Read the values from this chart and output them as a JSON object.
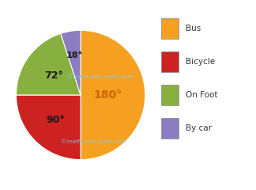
{
  "labels": [
    "Bus",
    "Bicycle",
    "On Foot",
    "By car"
  ],
  "angles": [
    180,
    90,
    72,
    18
  ],
  "colors": [
    "#F5A020",
    "#CC2222",
    "#88B040",
    "#8B7DC0"
  ],
  "angle_labels": [
    "180°",
    "90°",
    "72°",
    "18°"
  ],
  "label_colors": [
    "#cc6600",
    "#1a1a1a",
    "#1a1a1a",
    "#1a1a1a"
  ],
  "label_fontsizes": [
    10,
    9,
    9,
    8
  ],
  "label_radii": [
    0.42,
    0.55,
    0.52,
    0.62
  ],
  "watermark_top": "©math-only-math.com",
  "watermark_bottom": "©math-only-math.com",
  "watermark_color": "#87CEEB",
  "legend_labels": [
    "Bus",
    "Bicycle",
    "On Foot",
    "By car"
  ],
  "legend_colors": [
    "#F5A020",
    "#CC2222",
    "#88B040",
    "#8B7DC0"
  ],
  "startangle": 90,
  "background_color": "#ffffff"
}
